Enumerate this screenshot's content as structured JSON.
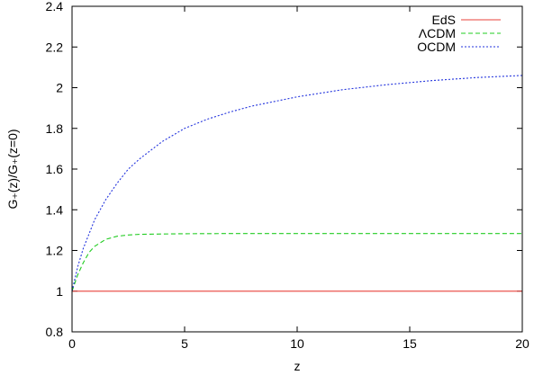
{
  "chart_data": {
    "type": "line",
    "xlabel": "z",
    "ylabel": "G₊(z)/G₊(z=0)",
    "xlim": [
      0,
      20
    ],
    "ylim": [
      0.8,
      2.4
    ],
    "x_ticks": [
      0,
      5,
      10,
      15,
      20
    ],
    "y_ticks": [
      0.8,
      1,
      1.2,
      1.4,
      1.6,
      1.8,
      2,
      2.2,
      2.4
    ],
    "x_tick_labels": [
      "0",
      "5",
      "10",
      "15",
      "20"
    ],
    "y_tick_labels": [
      "0.8",
      "1",
      "1.2",
      "1.4",
      "1.6",
      "1.8",
      "2",
      "2.2",
      "2.4"
    ],
    "grid": false,
    "legend_position": "top-right",
    "series": [
      {
        "name": "EdS",
        "color": "#e8403a",
        "dash": "solid",
        "x": [
          0,
          1,
          2,
          3,
          4,
          5,
          6,
          8,
          10,
          12,
          14,
          16,
          18,
          20
        ],
        "values": [
          1,
          1,
          1,
          1,
          1,
          1,
          1,
          1,
          1,
          1,
          1,
          1,
          1,
          1
        ]
      },
      {
        "name": "ΛCDM",
        "color": "#22cc22",
        "dash": "dashed",
        "x": [
          0,
          0.25,
          0.5,
          0.75,
          1,
          1.5,
          2,
          2.5,
          3,
          4,
          5,
          7,
          10,
          15,
          20
        ],
        "values": [
          1.0,
          1.08,
          1.14,
          1.19,
          1.22,
          1.255,
          1.27,
          1.276,
          1.279,
          1.281,
          1.282,
          1.283,
          1.283,
          1.283,
          1.283
        ]
      },
      {
        "name": "OCDM",
        "color": "#2233dd",
        "dash": "dotted",
        "x": [
          0,
          0.25,
          0.5,
          1,
          1.5,
          2,
          2.5,
          3,
          4,
          5,
          6,
          7,
          8,
          10,
          12,
          14,
          16,
          18,
          20
        ],
        "values": [
          1.0,
          1.12,
          1.21,
          1.35,
          1.45,
          1.53,
          1.6,
          1.65,
          1.735,
          1.8,
          1.845,
          1.88,
          1.91,
          1.955,
          1.99,
          2.015,
          2.035,
          2.05,
          2.06
        ]
      }
    ]
  }
}
